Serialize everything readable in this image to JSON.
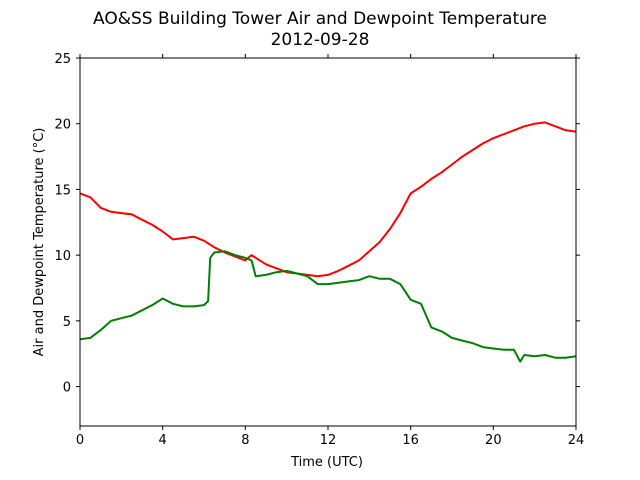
{
  "chart_data": {
    "type": "line",
    "title": "AO&SS Building Tower Air and Dewpoint Temperature",
    "subtitle": "2012-09-28",
    "xlabel": "Time (UTC)",
    "ylabel": "Air and Dewpoint Temperature (°C)",
    "xlim": [
      0,
      24
    ],
    "ylim": [
      -3,
      25
    ],
    "xticks": [
      0,
      4,
      8,
      12,
      16,
      20,
      24
    ],
    "yticks": [
      0,
      5,
      10,
      15,
      20,
      25
    ],
    "grid": false,
    "series": [
      {
        "color": "#ff0000",
        "x": [
          0.0,
          0.5,
          1.0,
          1.5,
          2.0,
          2.5,
          3.0,
          3.5,
          4.0,
          4.5,
          5.0,
          5.5,
          6.0,
          6.5,
          7.0,
          7.5,
          8.0,
          8.3,
          8.5,
          9.0,
          9.5,
          10.0,
          10.5,
          11.0,
          11.5,
          12.0,
          12.5,
          13.0,
          13.5,
          14.0,
          14.5,
          15.0,
          15.5,
          16.0,
          16.5,
          17.0,
          17.5,
          18.0,
          18.5,
          19.0,
          19.5,
          20.0,
          20.5,
          21.0,
          21.5,
          22.0,
          22.5,
          23.0,
          23.5,
          24.0
        ],
        "y": [
          14.7,
          14.4,
          13.6,
          13.3,
          13.2,
          13.1,
          12.7,
          12.3,
          11.8,
          11.2,
          11.3,
          11.4,
          11.1,
          10.6,
          10.2,
          9.9,
          9.6,
          10.0,
          9.8,
          9.3,
          9.0,
          8.7,
          8.6,
          8.5,
          8.4,
          8.5,
          8.8,
          9.2,
          9.6,
          10.3,
          11.0,
          12.0,
          13.2,
          14.7,
          15.2,
          15.8,
          16.3,
          16.9,
          17.5,
          18.0,
          18.5,
          18.9,
          19.2,
          19.5,
          19.8,
          20.0,
          20.1,
          19.8,
          19.5,
          19.4
        ]
      },
      {
        "color": "#008000",
        "x": [
          0.0,
          0.5,
          1.0,
          1.5,
          2.0,
          2.5,
          3.0,
          3.5,
          4.0,
          4.5,
          5.0,
          5.5,
          6.0,
          6.2,
          6.3,
          6.5,
          7.0,
          7.5,
          8.0,
          8.3,
          8.5,
          9.0,
          9.5,
          10.0,
          10.5,
          11.0,
          11.5,
          12.0,
          12.5,
          13.0,
          13.5,
          14.0,
          14.5,
          15.0,
          15.5,
          16.0,
          16.5,
          17.0,
          17.5,
          18.0,
          18.5,
          19.0,
          19.5,
          20.0,
          20.5,
          21.0,
          21.3,
          21.5,
          22.0,
          22.5,
          23.0,
          23.5,
          24.0
        ],
        "y": [
          3.6,
          3.7,
          4.3,
          5.0,
          5.2,
          5.4,
          5.8,
          6.2,
          6.7,
          6.3,
          6.1,
          6.1,
          6.2,
          6.5,
          9.8,
          10.2,
          10.3,
          10.0,
          9.8,
          9.6,
          8.4,
          8.5,
          8.7,
          8.8,
          8.6,
          8.4,
          7.8,
          7.8,
          7.9,
          8.0,
          8.1,
          8.4,
          8.2,
          8.2,
          7.8,
          6.6,
          6.3,
          4.5,
          4.2,
          3.7,
          3.5,
          3.3,
          3.0,
          2.9,
          2.8,
          2.8,
          1.9,
          2.4,
          2.3,
          2.4,
          2.2,
          2.2,
          2.3
        ]
      }
    ]
  }
}
